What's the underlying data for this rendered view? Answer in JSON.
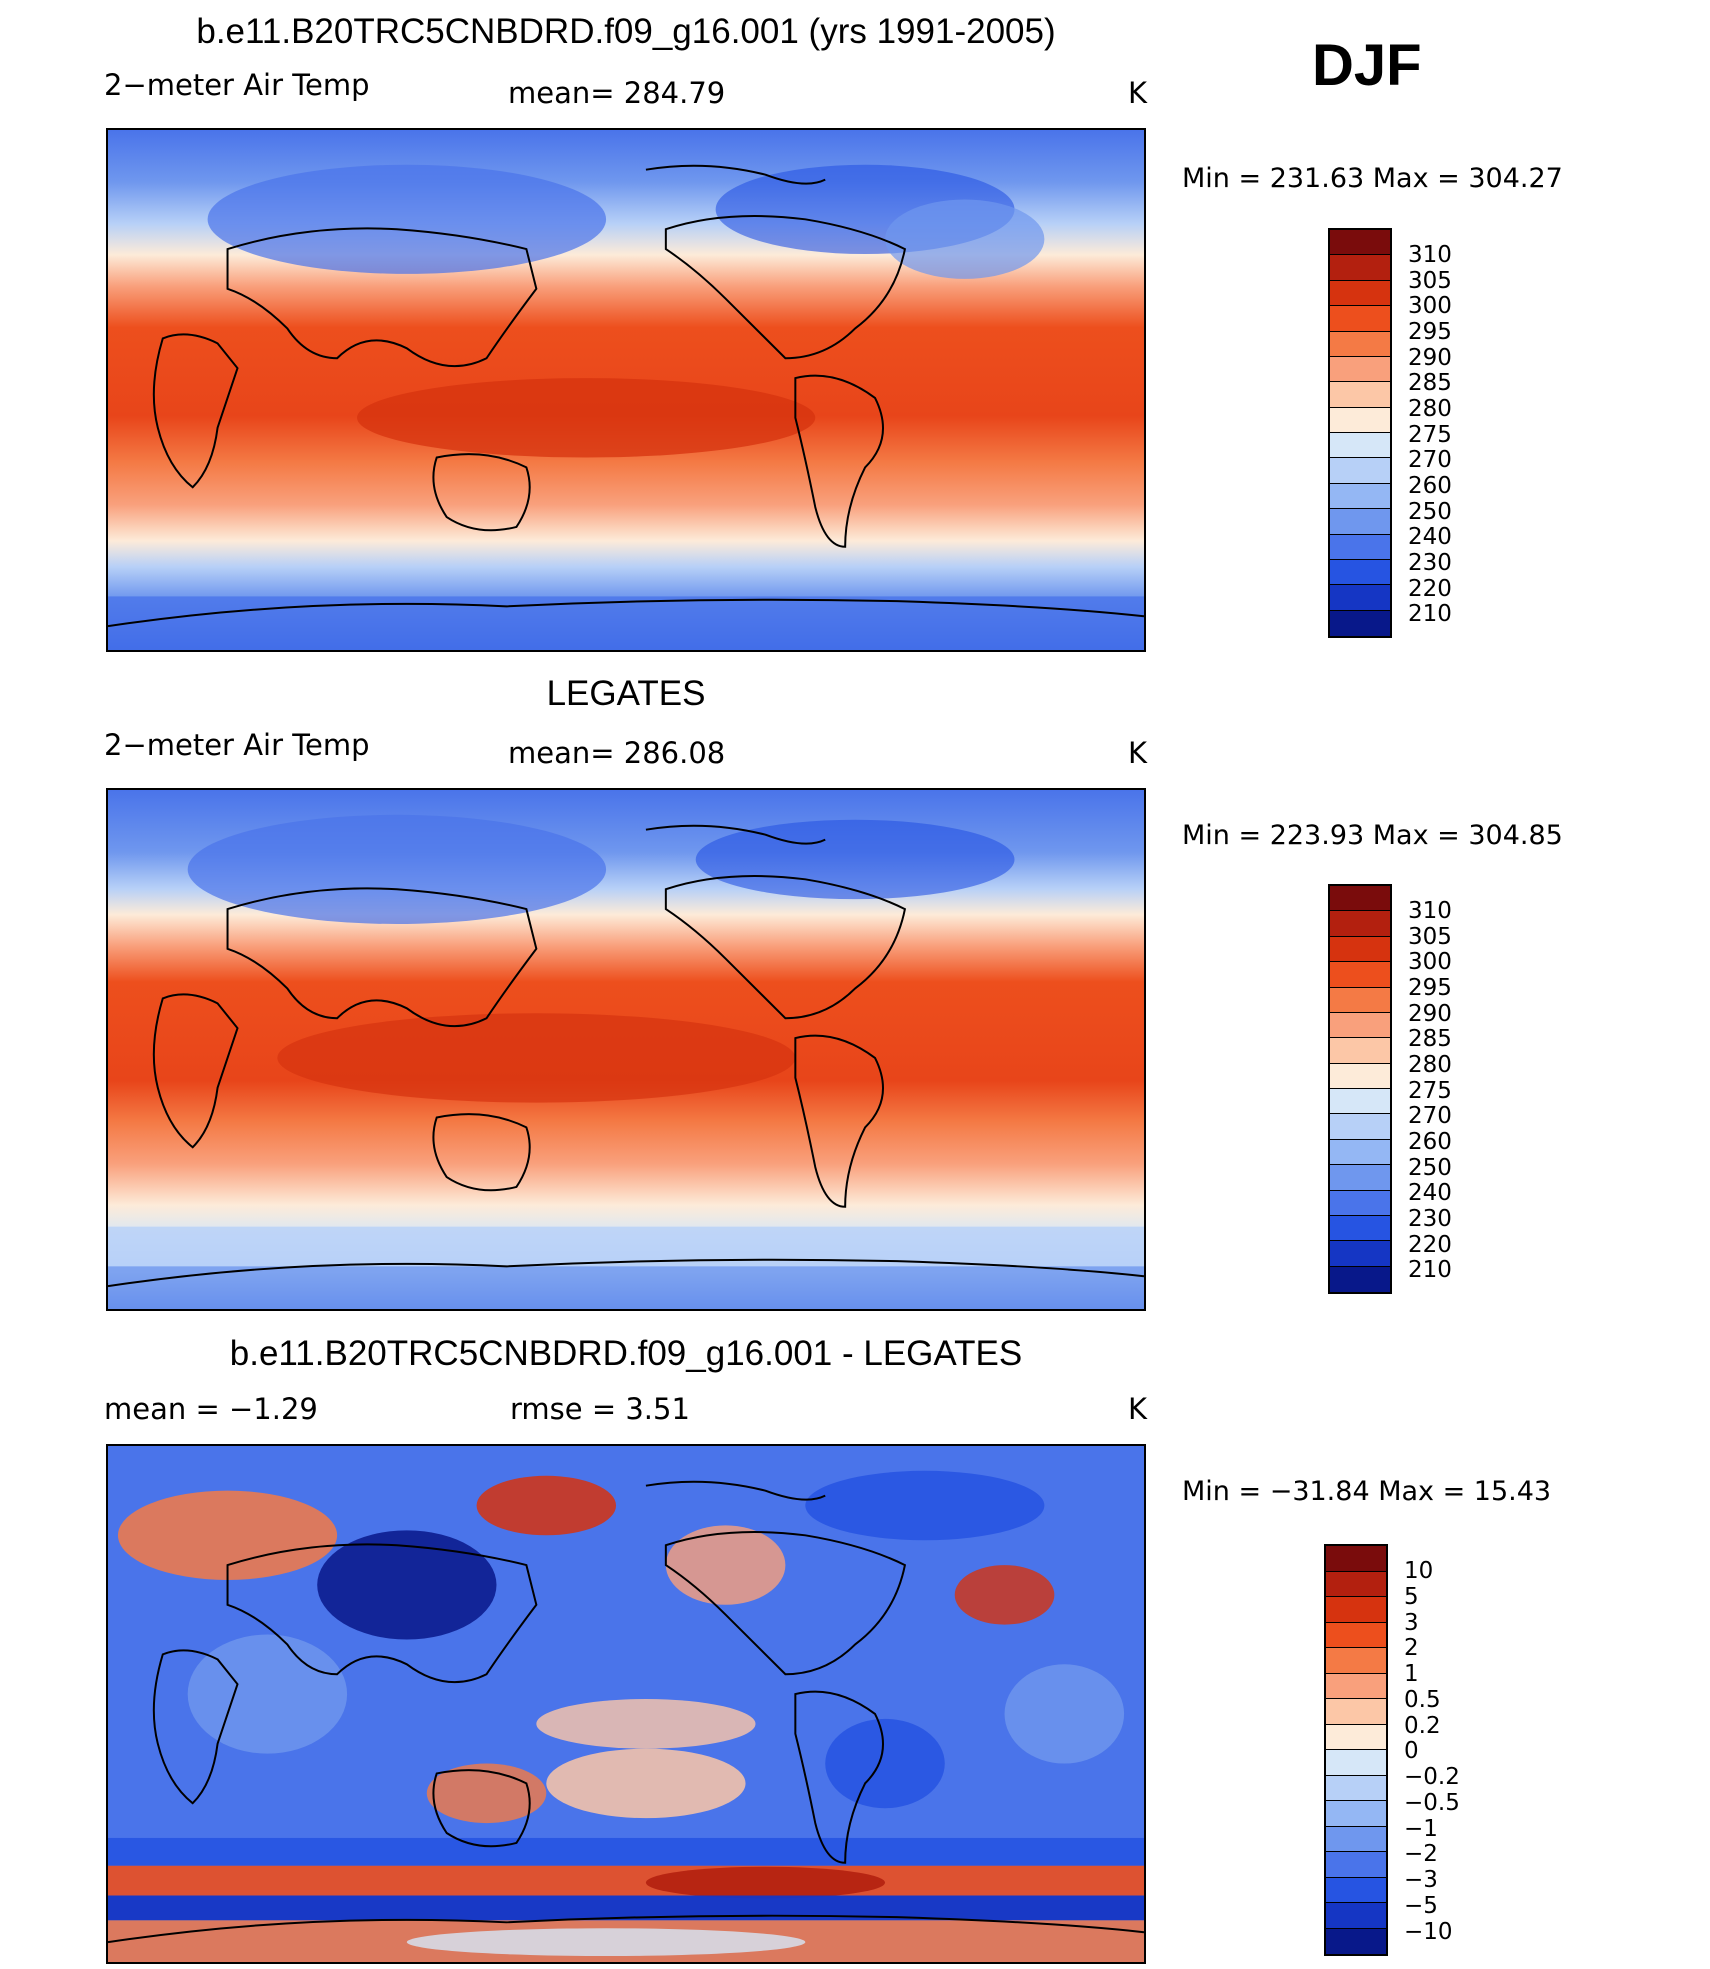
{
  "season_label": "DJF",
  "panels": [
    {
      "title": "b.e11.B20TRC5CNBDRD.f09_g16.001 (yrs 1991-2005)",
      "variable": "2−meter Air Temp",
      "stat_text": "mean=  284.79",
      "units": "K",
      "minmax": "Min  =  231.63  Max  =  304.27",
      "colorbar": {
        "labels": [
          "310",
          "305",
          "300",
          "295",
          "290",
          "285",
          "280",
          "275",
          "270",
          "260",
          "250",
          "240",
          "230",
          "220",
          "210"
        ],
        "colors": [
          "#7a0c0c",
          "#b3200f",
          "#d6330f",
          "#ed4f1d",
          "#f47a45",
          "#f9a07c",
          "#fcc7a7",
          "#fdebd9",
          "#d6e7f8",
          "#b7d0f7",
          "#94b7f4",
          "#6f97ee",
          "#4a74ea",
          "#2654e2",
          "#1536c4",
          "#08188a"
        ]
      },
      "map_style": "model"
    },
    {
      "title": "LEGATES",
      "variable": "2−meter Air Temp",
      "stat_text": "mean=  286.08",
      "units": "K",
      "minmax": "Min  =  223.93  Max  =  304.85",
      "colorbar": {
        "labels": [
          "310",
          "305",
          "300",
          "295",
          "290",
          "285",
          "280",
          "275",
          "270",
          "260",
          "250",
          "240",
          "230",
          "220",
          "210"
        ],
        "colors": [
          "#7a0c0c",
          "#b3200f",
          "#d6330f",
          "#ed4f1d",
          "#f47a45",
          "#f9a07c",
          "#fcc7a7",
          "#fdebd9",
          "#d6e7f8",
          "#b7d0f7",
          "#94b7f4",
          "#6f97ee",
          "#4a74ea",
          "#2654e2",
          "#1536c4",
          "#08188a"
        ]
      },
      "map_style": "obs"
    },
    {
      "title": "b.e11.B20TRC5CNBDRD.f09_g16.001 - LEGATES",
      "stat_left": "mean  =    −1.29",
      "stat_mid": "rmse  =     3.51",
      "units": "K",
      "minmax": "Min  =  −31.84  Max  =    15.43",
      "colorbar": {
        "labels": [
          "10",
          "5",
          "3",
          "2",
          "1",
          "0.5",
          "0.2",
          "0",
          "−0.2",
          "−0.5",
          "−1",
          "−2",
          "−3",
          "−5",
          "−10"
        ],
        "colors": [
          "#7a0c0c",
          "#b3200f",
          "#d6330f",
          "#ed4f1d",
          "#f47a45",
          "#f9a07c",
          "#fcc7a7",
          "#fdebd9",
          "#d6e7f8",
          "#b7d0f7",
          "#94b7f4",
          "#6f97ee",
          "#4a74ea",
          "#2654e2",
          "#1536c4",
          "#08188a"
        ]
      },
      "map_style": "diff"
    }
  ]
}
